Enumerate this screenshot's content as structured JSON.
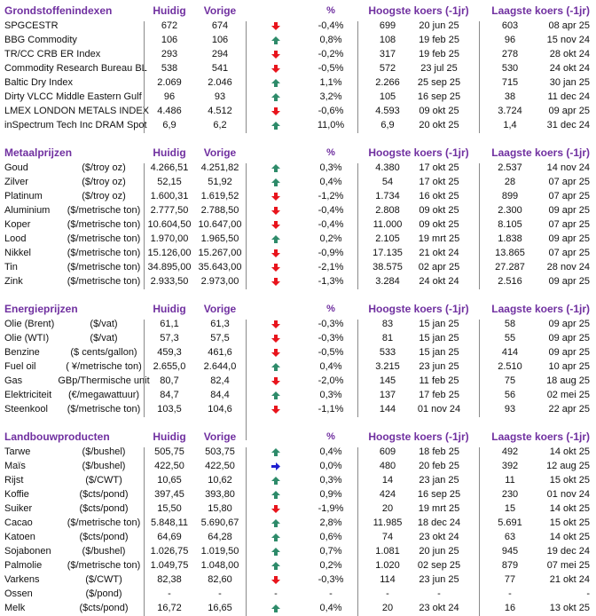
{
  "colors": {
    "header": "#7030a0",
    "up": "#2e8b6a",
    "down": "#e8141c",
    "flat": "#1f1fd0"
  },
  "columns": {
    "current": "Huidig",
    "previous": "Vorige",
    "pct": "%",
    "high": "Hoogste koers (-1jr)",
    "low": "Laagste koers (-1jr)"
  },
  "sections": [
    {
      "title": "Grondstoffenindexen",
      "rows": [
        {
          "name": "SPGCESTR",
          "unit": "",
          "current": "672",
          "previous": "674",
          "trend": "down",
          "pct": "-0,4%",
          "high": "699",
          "high_date": "20 jun 25",
          "low": "603",
          "low_date": "08 apr 25"
        },
        {
          "name": "BBG Commodity",
          "unit": "",
          "current": "106",
          "previous": "106",
          "trend": "up",
          "pct": "0,8%",
          "high": "108",
          "high_date": "19 feb 25",
          "low": "96",
          "low_date": "15 nov 24"
        },
        {
          "name": "TR/CC CRB ER Index",
          "unit": "",
          "current": "293",
          "previous": "294",
          "trend": "down",
          "pct": "-0,2%",
          "high": "317",
          "high_date": "19 feb 25",
          "low": "278",
          "low_date": "28 okt 24"
        },
        {
          "name": "Commodity Research Bureau BL",
          "unit": "",
          "current": "538",
          "previous": "541",
          "trend": "down",
          "pct": "-0,5%",
          "high": "572",
          "high_date": "23 jul 25",
          "low": "530",
          "low_date": "24 okt 24"
        },
        {
          "name": "Baltic Dry Index",
          "unit": "",
          "current": "2.069",
          "previous": "2.046",
          "trend": "up",
          "pct": "1,1%",
          "high": "2.266",
          "high_date": "25 sep 25",
          "low": "715",
          "low_date": "30 jan 25"
        },
        {
          "name": "Dirty VLCC Middle Eastern Gulf",
          "unit": "",
          "current": "96",
          "previous": "93",
          "trend": "up",
          "pct": "3,2%",
          "high": "105",
          "high_date": "16 sep 25",
          "low": "38",
          "low_date": "11 dec 24"
        },
        {
          "name": "LMEX LONDON METALS INDEX",
          "unit": "",
          "current": "4.486",
          "previous": "4.512",
          "trend": "down",
          "pct": "-0,6%",
          "high": "4.593",
          "high_date": "09 okt 25",
          "low": "3.724",
          "low_date": "09 apr 25"
        },
        {
          "name": "inSpectrum Tech Inc DRAM Spot",
          "unit": "",
          "current": "6,9",
          "previous": "6,2",
          "trend": "up",
          "pct": "11,0%",
          "high": "6,9",
          "high_date": "20 okt 25",
          "low": "1,4",
          "low_date": "31 dec 24"
        }
      ]
    },
    {
      "title": "Metaalprijzen",
      "rows": [
        {
          "name": "Goud",
          "unit": "($/troy oz)",
          "current": "4.266,51",
          "previous": "4.251,82",
          "trend": "up",
          "pct": "0,3%",
          "high": "4.380",
          "high_date": "17 okt 25",
          "low": "2.537",
          "low_date": "14 nov 24"
        },
        {
          "name": "Zilver",
          "unit": "($/troy oz)",
          "current": "52,15",
          "previous": "51,92",
          "trend": "up",
          "pct": "0,4%",
          "high": "54",
          "high_date": "17 okt 25",
          "low": "28",
          "low_date": "07 apr 25"
        },
        {
          "name": "Platinum",
          "unit": "($/troy oz)",
          "current": "1.600,31",
          "previous": "1.619,52",
          "trend": "down",
          "pct": "-1,2%",
          "high": "1.734",
          "high_date": "16 okt 25",
          "low": "899",
          "low_date": "07 apr 25"
        },
        {
          "name": "Aluminium",
          "unit": "($/metrische ton)",
          "current": "2.777,50",
          "previous": "2.788,50",
          "trend": "down",
          "pct": "-0,4%",
          "high": "2.808",
          "high_date": "09 okt 25",
          "low": "2.300",
          "low_date": "09 apr 25"
        },
        {
          "name": "Koper",
          "unit": "($/metrische ton)",
          "current": "10.604,50",
          "previous": "10.647,00",
          "trend": "down",
          "pct": "-0,4%",
          "high": "11.000",
          "high_date": "09 okt 25",
          "low": "8.105",
          "low_date": "07 apr 25"
        },
        {
          "name": "Lood",
          "unit": "($/metrische ton)",
          "current": "1.970,00",
          "previous": "1.965,50",
          "trend": "up",
          "pct": "0,2%",
          "high": "2.105",
          "high_date": "19 mrt 25",
          "low": "1.838",
          "low_date": "09 apr 25"
        },
        {
          "name": "Nikkel",
          "unit": "($/metrische ton)",
          "current": "15.126,00",
          "previous": "15.267,00",
          "trend": "down",
          "pct": "-0,9%",
          "high": "17.135",
          "high_date": "21 okt 24",
          "low": "13.865",
          "low_date": "07 apr 25"
        },
        {
          "name": "Tin",
          "unit": "($/metrische ton)",
          "current": "34.895,00",
          "previous": "35.643,00",
          "trend": "down",
          "pct": "-2,1%",
          "high": "38.575",
          "high_date": "02 apr 25",
          "low": "27.287",
          "low_date": "28 nov 24"
        },
        {
          "name": "Zink",
          "unit": "($/metrische ton)",
          "current": "2.933,50",
          "previous": "2.973,00",
          "trend": "down",
          "pct": "-1,3%",
          "high": "3.284",
          "high_date": "24 okt 24",
          "low": "2.516",
          "low_date": "09 apr 25"
        }
      ]
    },
    {
      "title": "Energieprijzen",
      "rows": [
        {
          "name": "Olie (Brent)",
          "unit": "($/vat)",
          "current": "61,1",
          "previous": "61,3",
          "trend": "down",
          "pct": "-0,3%",
          "high": "83",
          "high_date": "15 jan 25",
          "low": "58",
          "low_date": "09 apr 25"
        },
        {
          "name": "Olie (WTI)",
          "unit": "($/vat)",
          "current": "57,3",
          "previous": "57,5",
          "trend": "down",
          "pct": "-0,3%",
          "high": "81",
          "high_date": "15 jan 25",
          "low": "55",
          "low_date": "09 apr 25"
        },
        {
          "name": "Benzine",
          "unit": "($ cents/gallon)",
          "current": "459,3",
          "previous": "461,6",
          "trend": "down",
          "pct": "-0,5%",
          "high": "533",
          "high_date": "15 jan 25",
          "low": "414",
          "low_date": "09 apr 25"
        },
        {
          "name": "Fuel oil",
          "unit": "( ¥/metrische ton)",
          "current": "2.655,0",
          "previous": "2.644,0",
          "trend": "up",
          "pct": "0,4%",
          "high": "3.215",
          "high_date": "23 jun 25",
          "low": "2.510",
          "low_date": "10 apr 25"
        },
        {
          "name": "Gas",
          "unit": "GBp/Thermische unit",
          "current": "80,7",
          "previous": "82,4",
          "trend": "down",
          "pct": "-2,0%",
          "high": "145",
          "high_date": "11 feb 25",
          "low": "75",
          "low_date": "18 aug 25"
        },
        {
          "name": "Elektriciteit",
          "unit": "(€/megawattuur)",
          "current": "84,7",
          "previous": "84,4",
          "trend": "up",
          "pct": "0,3%",
          "high": "137",
          "high_date": "17 feb 25",
          "low": "56",
          "low_date": "02 mei 25"
        },
        {
          "name": "Steenkool",
          "unit": "($/metrische ton)",
          "current": "103,5",
          "previous": "104,6",
          "trend": "down",
          "pct": "-1,1%",
          "high": "144",
          "high_date": "01 nov 24",
          "low": "93",
          "low_date": "22 apr 25"
        }
      ]
    },
    {
      "title": "Landbouwproducten",
      "rows": [
        {
          "name": "Tarwe",
          "unit": "($/bushel)",
          "current": "505,75",
          "previous": "503,75",
          "trend": "up",
          "pct": "0,4%",
          "high": "609",
          "high_date": "18 feb 25",
          "low": "492",
          "low_date": "14 okt 25"
        },
        {
          "name": "Maïs",
          "unit": "($/bushel)",
          "current": "422,50",
          "previous": "422,50",
          "trend": "flat",
          "pct": "0,0%",
          "high": "480",
          "high_date": "20 feb 25",
          "low": "392",
          "low_date": "12 aug 25"
        },
        {
          "name": "Rijst",
          "unit": "($/CWT)",
          "current": "10,65",
          "previous": "10,62",
          "trend": "up",
          "pct": "0,3%",
          "high": "14",
          "high_date": "23 jan 25",
          "low": "11",
          "low_date": "15 okt 25"
        },
        {
          "name": "Koffie",
          "unit": "($cts/pond)",
          "current": "397,45",
          "previous": "393,80",
          "trend": "up",
          "pct": "0,9%",
          "high": "424",
          "high_date": "16 sep 25",
          "low": "230",
          "low_date": "01 nov 24"
        },
        {
          "name": "Suiker",
          "unit": "($cts/pond)",
          "current": "15,50",
          "previous": "15,80",
          "trend": "down",
          "pct": "-1,9%",
          "high": "20",
          "high_date": "19 mrt 25",
          "low": "15",
          "low_date": "14 okt 25"
        },
        {
          "name": "Cacao",
          "unit": "($/metrische ton)",
          "current": "5.848,11",
          "previous": "5.690,67",
          "trend": "up",
          "pct": "2,8%",
          "high": "11.985",
          "high_date": "18 dec 24",
          "low": "5.691",
          "low_date": "15 okt 25"
        },
        {
          "name": "Katoen",
          "unit": "($cts/pond)",
          "current": "64,69",
          "previous": "64,28",
          "trend": "up",
          "pct": "0,6%",
          "high": "74",
          "high_date": "23 okt 24",
          "low": "63",
          "low_date": "14 okt 25"
        },
        {
          "name": "Sojabonen",
          "unit": "($/bushel)",
          "current": "1.026,75",
          "previous": "1.019,50",
          "trend": "up",
          "pct": "0,7%",
          "high": "1.081",
          "high_date": "20 jun 25",
          "low": "945",
          "low_date": "19 dec 24"
        },
        {
          "name": "Palmolie",
          "unit": "($/metrische ton)",
          "current": "1.049,75",
          "previous": "1.048,00",
          "trend": "up",
          "pct": "0,2%",
          "high": "1.020",
          "high_date": "02 sep 25",
          "low": "879",
          "low_date": "07 mei 25"
        },
        {
          "name": "Varkens",
          "unit": "($/CWT)",
          "current": "82,38",
          "previous": "82,60",
          "trend": "down",
          "pct": "-0,3%",
          "high": "114",
          "high_date": "23 jun 25",
          "low": "77",
          "low_date": "21 okt 24"
        },
        {
          "name": "Ossen",
          "unit": "($/pond)",
          "current": "-",
          "previous": "-",
          "trend": "none",
          "trend_text": "-",
          "pct": "-",
          "high": "-",
          "high_date": "-",
          "low": "-",
          "low_date": "-"
        },
        {
          "name": "Melk",
          "unit": "($cts/pond)",
          "current": "16,72",
          "previous": "16,65",
          "trend": "up",
          "pct": "0,4%",
          "high": "20",
          "high_date": "23 okt 24",
          "low": "16",
          "low_date": "13 okt 25"
        }
      ]
    }
  ]
}
